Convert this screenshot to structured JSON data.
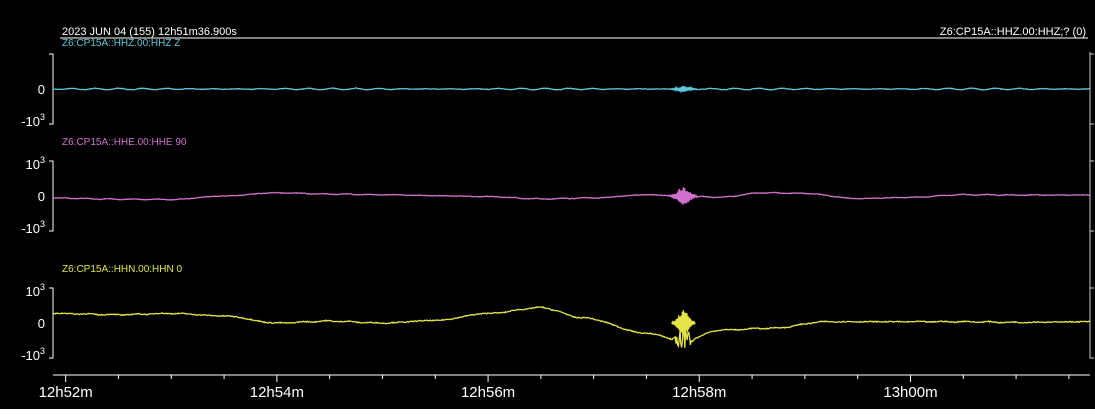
{
  "header": {
    "datetime": "2023 JUN 04 (155)  12h51m36.900s",
    "stream": "Z6:CP15A::HHZ.00:HHZ;? (0)"
  },
  "colors": {
    "background": "#000000",
    "frame": "#ffffff",
    "HHZ": "#5ec8dc",
    "HHE": "#d270d0",
    "HHN": "#e4e448",
    "tick_text": "#ffffff"
  },
  "chart_data": {
    "type": "line",
    "x_axis": {
      "ticks": [
        {
          "value": 0,
          "label": "12h52m"
        },
        {
          "value": 2,
          "label": "12h54m"
        },
        {
          "value": 4,
          "label": "12h56m"
        },
        {
          "value": 6,
          "label": "12h58m"
        },
        {
          "value": 8,
          "label": "13h00m"
        }
      ],
      "xlim": [
        -0.12,
        9.7
      ]
    },
    "ylim": [
      -1200,
      1200
    ],
    "y_ticks": [
      {
        "value": 1000,
        "base": "10",
        "exp": "3",
        "sign": ""
      },
      {
        "value": 0,
        "base": "0",
        "exp": "",
        "sign": ""
      },
      {
        "value": -1000,
        "base": "10",
        "exp": "3",
        "sign": "-"
      }
    ],
    "series": [
      {
        "name": "Z6:CP15A::HHZ.00:HHZ Z",
        "key": "HHZ",
        "y_ticks_shown": [
          0,
          -1000
        ],
        "x": [
          -0.12,
          1,
          2,
          3,
          4,
          5,
          5.5,
          5.8,
          5.95,
          6.3,
          7,
          8,
          9.7
        ],
        "y": [
          0,
          0,
          0,
          0,
          0,
          0,
          0,
          0,
          0,
          0,
          0,
          0,
          0
        ],
        "wiggle": 25,
        "noise": 8,
        "events": [
          {
            "x": 5.85,
            "amp": 90,
            "width": 0.08
          }
        ]
      },
      {
        "name": "Z6:CP15A::HHE.00:HHE 90",
        "key": "HHE",
        "y_ticks_shown": [
          1000,
          0,
          -1000
        ],
        "x": [
          -0.12,
          0.5,
          1.0,
          1.5,
          2.0,
          2.5,
          3.0,
          3.5,
          4.0,
          4.5,
          5.0,
          5.5,
          5.85,
          6.2,
          6.6,
          7.0,
          7.5,
          8.0,
          8.5,
          9.0,
          9.7
        ],
        "y": [
          -60,
          -100,
          -110,
          0,
          100,
          60,
          40,
          10,
          -20,
          -90,
          -60,
          40,
          0,
          -40,
          100,
          80,
          -80,
          -40,
          40,
          30,
          30
        ],
        "wiggle": 12,
        "noise": 10,
        "events": [
          {
            "x": 5.85,
            "amp": 280,
            "width": 0.08
          }
        ]
      },
      {
        "name": "Z6:CP15A::HHN.00:HHN 0",
        "key": "HHN",
        "y_ticks_shown": [
          1000,
          0,
          -1000
        ],
        "x": [
          -0.12,
          0.5,
          1.0,
          1.5,
          2.0,
          2.5,
          3.0,
          3.5,
          4.0,
          4.5,
          4.9,
          5.5,
          5.85,
          6.2,
          6.7,
          7.2,
          7.8,
          8.5,
          9.0,
          9.7
        ],
        "y": [
          300,
          260,
          300,
          220,
          0,
          60,
          0,
          80,
          300,
          480,
          160,
          -320,
          -560,
          -220,
          -160,
          40,
          40,
          40,
          20,
          40
        ],
        "wiggle": 15,
        "noise": 15,
        "events": [
          {
            "x": 5.85,
            "amp": 420,
            "width": 0.07
          }
        ]
      }
    ]
  }
}
